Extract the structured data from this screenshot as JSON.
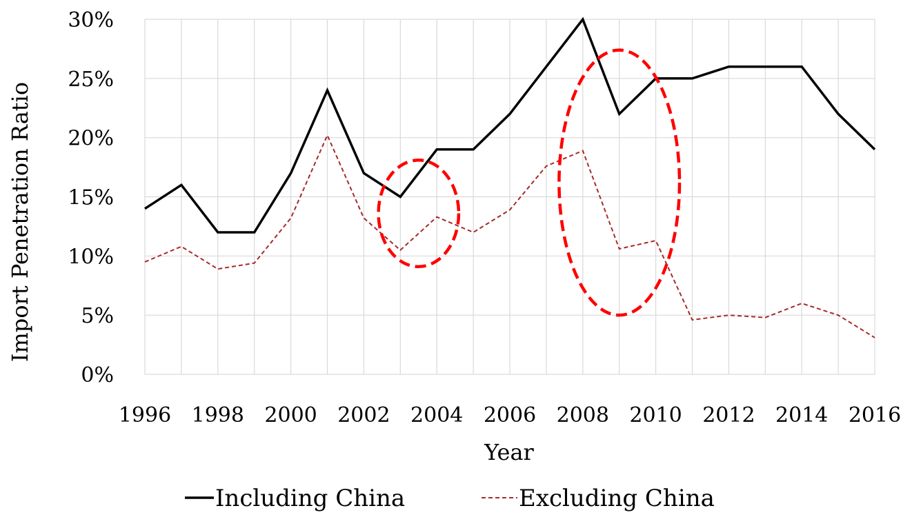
{
  "chart_data": {
    "type": "line",
    "xlabel": "Year",
    "ylabel": "Import Penetration Ratio",
    "x": [
      1996,
      1997,
      1998,
      1999,
      2000,
      2001,
      2002,
      2003,
      2004,
      2005,
      2006,
      2007,
      2008,
      2009,
      2010,
      2011,
      2012,
      2013,
      2014,
      2015,
      2016
    ],
    "x_tick_labels": [
      "1996",
      "1998",
      "2000",
      "2002",
      "2004",
      "2006",
      "2008",
      "2010",
      "2012",
      "2014",
      "2016"
    ],
    "y_tick_labels": [
      "0%",
      "5%",
      "10%",
      "15%",
      "20%",
      "25%",
      "30%"
    ],
    "y_ticks": [
      0,
      5,
      10,
      15,
      20,
      25,
      30
    ],
    "xlim": [
      1996,
      2016
    ],
    "ylim": [
      0,
      30
    ],
    "grid": true,
    "legend_position": "bottom",
    "series": [
      {
        "name": "Including China",
        "color": "#000000",
        "style": "solid",
        "values": [
          14,
          16,
          12,
          12,
          17,
          24,
          17,
          15,
          19,
          19,
          22,
          26,
          30,
          22,
          25,
          25,
          26,
          26,
          26,
          22,
          19
        ]
      },
      {
        "name": "Excluding China",
        "color": "#a52a2a",
        "style": "dashed",
        "values": [
          9.5,
          10.8,
          8.9,
          9.4,
          13.2,
          20.2,
          13.2,
          10.5,
          13.3,
          12,
          13.9,
          17.6,
          18.9,
          10.6,
          11.3,
          4.6,
          5,
          4.8,
          6,
          5,
          3.1
        ]
      }
    ],
    "annotations": [
      {
        "type": "ellipse",
        "color": "#ff0000",
        "style": "dashed",
        "cx": 2003.5,
        "cy": 13.6,
        "rx_years": 1.1,
        "ry_pct": 4.5
      },
      {
        "type": "ellipse",
        "color": "#ff0000",
        "style": "dashed",
        "cx": 2009,
        "cy": 16.2,
        "rx_years": 1.65,
        "ry_pct": 11.2
      }
    ]
  }
}
